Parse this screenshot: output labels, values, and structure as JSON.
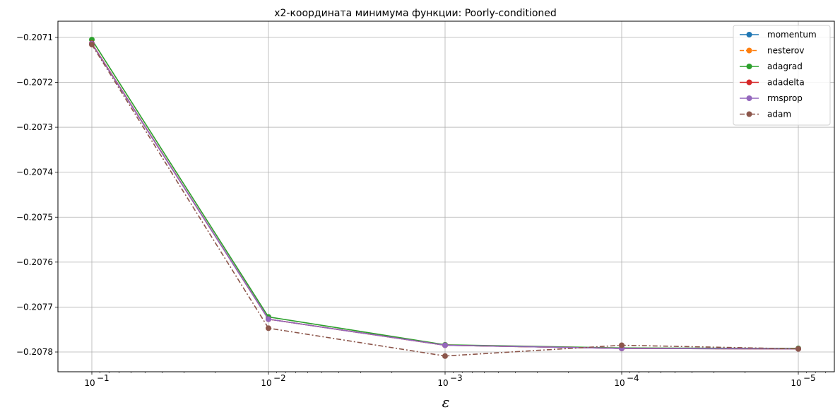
{
  "chart_data": {
    "type": "line",
    "title": "x2-координата минимума функции: Poorly-conditioned",
    "xlabel": "ε",
    "ylabel": "",
    "xscale": "log",
    "x_reversed": true,
    "x": [
      0.1,
      0.01,
      0.001,
      0.0001,
      1e-05
    ],
    "x_tick_labels": [
      "10",
      "10",
      "10",
      "10",
      "10"
    ],
    "x_tick_exponents": [
      "−1",
      "−2",
      "−3",
      "−4",
      "−5"
    ],
    "ylim": [
      -0.207844,
      -0.207064
    ],
    "y_ticks": [
      -0.2071,
      -0.2072,
      -0.2073,
      -0.2074,
      -0.2075,
      -0.2076,
      -0.2077,
      -0.2078
    ],
    "y_tick_labels": [
      "−0.2071",
      "−0.2072",
      "−0.2073",
      "−0.2074",
      "−0.2075",
      "−0.2076",
      "−0.2077",
      "−0.2078"
    ],
    "grid": true,
    "legend_position": "top-right",
    "series": [
      {
        "name": "momentum",
        "color": "#1f77b4",
        "dash": "solid",
        "values": [
          -0.207114,
          -0.207727,
          -0.207785,
          -0.207792,
          -0.207793
        ]
      },
      {
        "name": "nesterov",
        "color": "#ff7f0e",
        "dash": "dashed",
        "values": [
          -0.207114,
          -0.207727,
          -0.207785,
          -0.207792,
          -0.207793
        ]
      },
      {
        "name": "adagrad",
        "color": "#2ca02c",
        "dash": "solid",
        "values": [
          -0.207105,
          -0.207722,
          -0.207784,
          -0.207791,
          -0.207792
        ]
      },
      {
        "name": "adadelta",
        "color": "#d62728",
        "dash": "solid",
        "values": [
          -0.207113,
          -0.207727,
          -0.207785,
          -0.207792,
          -0.207793
        ]
      },
      {
        "name": "rmsprop",
        "color": "#9467bd",
        "dash": "solid",
        "values": [
          -0.207114,
          -0.207727,
          -0.207785,
          -0.207792,
          -0.207793
        ]
      },
      {
        "name": "adam",
        "color": "#8c564b",
        "dash": "dashdot",
        "values": [
          -0.207116,
          -0.207747,
          -0.207809,
          -0.207785,
          -0.207793
        ]
      }
    ]
  }
}
